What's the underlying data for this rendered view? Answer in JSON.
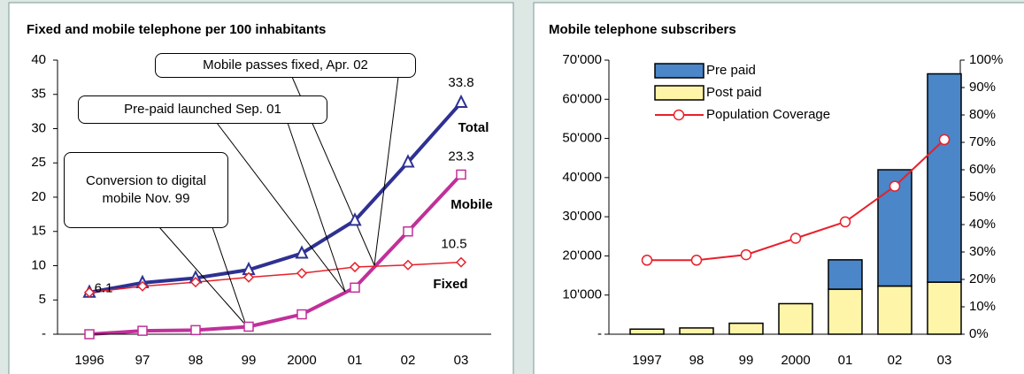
{
  "chart_data": [
    {
      "type": "line",
      "title": "Fixed and mobile telephone per 100 inhabitants",
      "categories": [
        "1996",
        "97",
        "98",
        "99",
        "2000",
        "01",
        "02",
        "03"
      ],
      "ylim": [
        0,
        40
      ],
      "yticks": [
        {
          "value": 0,
          "label": "-"
        },
        5,
        10,
        15,
        20,
        25,
        30,
        35,
        40
      ],
      "series": [
        {
          "name": "Total",
          "color": "#2e3192",
          "marker": "triangle",
          "values": [
            6.1,
            7.5,
            8.2,
            9.4,
            11.8,
            16.6,
            25.1,
            33.8
          ]
        },
        {
          "name": "Mobile",
          "color": "#c0309a",
          "marker": "square",
          "values": [
            0.0,
            0.5,
            0.6,
            1.1,
            2.9,
            6.8,
            15.0,
            23.3
          ]
        },
        {
          "name": "Fixed",
          "color": "#e8202a",
          "marker": "diamond",
          "values": [
            6.1,
            7.0,
            7.6,
            8.3,
            8.9,
            9.8,
            10.1,
            10.5
          ]
        }
      ],
      "annotations": [
        "Mobile passes fixed, Apr. 02",
        "Pre-paid launched Sep. 01",
        "Conversion to digital mobile Nov. 99"
      ]
    },
    {
      "type": "bar",
      "title": "Mobile telephone subscribers",
      "categories": [
        "1997",
        "98",
        "99",
        "2000",
        "01",
        "02",
        "03"
      ],
      "stacked": true,
      "ylim": [
        0,
        70000
      ],
      "yticks": [
        {
          "value": 0,
          "label": "-"
        },
        {
          "value": 10000,
          "label": "10'000"
        },
        {
          "value": 20000,
          "label": "20'000"
        },
        {
          "value": 30000,
          "label": "30'000"
        },
        {
          "value": 40000,
          "label": "40'000"
        },
        {
          "value": 50000,
          "label": "50'000"
        },
        {
          "value": 60000,
          "label": "60'000"
        },
        {
          "value": 70000,
          "label": "70'000"
        }
      ],
      "y2lim": [
        0,
        100
      ],
      "y2ticks": [
        {
          "value": 0,
          "label": "0%"
        },
        {
          "value": 10,
          "label": "10%"
        },
        {
          "value": 20,
          "label": "20%"
        },
        {
          "value": 30,
          "label": "30%"
        },
        {
          "value": 40,
          "label": "40%"
        },
        {
          "value": 50,
          "label": "50%"
        },
        {
          "value": 60,
          "label": "60%"
        },
        {
          "value": 70,
          "label": "70%"
        },
        {
          "value": 80,
          "label": "80%"
        },
        {
          "value": 90,
          "label": "90%"
        },
        {
          "value": 100,
          "label": "100%"
        }
      ],
      "legend": "upper left",
      "series": [
        {
          "name": "Pre paid",
          "color": "#4a86c8",
          "values": [
            0,
            0,
            0,
            0,
            7500,
            29700,
            53200
          ]
        },
        {
          "name": "Post paid",
          "color": "#fff5a8",
          "values": [
            1300,
            1600,
            2800,
            7800,
            11500,
            12300,
            13300
          ]
        },
        {
          "name": "Population Coverage",
          "color": "#e8202a",
          "axis": "y2",
          "marker": "circle",
          "values": [
            27,
            27,
            29,
            35,
            41,
            54,
            71
          ]
        }
      ]
    }
  ]
}
